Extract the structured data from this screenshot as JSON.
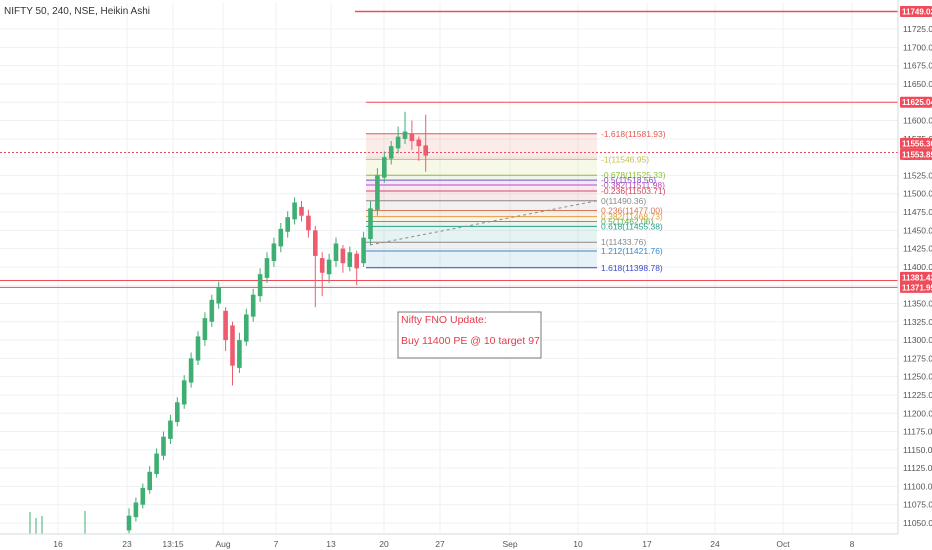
{
  "header": {
    "title": "NIFTY 50, 240, NSE, Heikin Ashi"
  },
  "colors": {
    "up": "#3fae72",
    "down": "#ef5b6e",
    "grid": "#eef1f4",
    "axis_text": "#555555",
    "badge": "#ef4b5a",
    "note_text": "#e53a4a"
  },
  "chart_data": {
    "type": "candlestick",
    "style": "Heikin Ashi",
    "title": "NIFTY 50, 240, NSE, Heikin Ashi",
    "ylim": [
      11035,
      11762
    ],
    "y_ticks": [
      11050,
      11075,
      11100,
      11125,
      11150,
      11175,
      11200,
      11225,
      11250,
      11275,
      11300,
      11325,
      11350,
      11375,
      11400,
      11425,
      11450,
      11475,
      11500,
      11525,
      11550,
      11575,
      11600,
      11625,
      11650,
      11675,
      11700,
      11725
    ],
    "x_ticks": [
      "16",
      "23",
      "13:15",
      "Aug",
      "7",
      "13",
      "20",
      "27",
      "Sep",
      "10",
      "17",
      "24",
      "Oct",
      "8"
    ],
    "grid": true,
    "candles": [
      {
        "o": 11040,
        "c": 11060,
        "h": 11070,
        "l": 11036
      },
      {
        "o": 11058,
        "c": 11078,
        "h": 11085,
        "l": 11052
      },
      {
        "o": 11075,
        "c": 11098,
        "h": 11104,
        "l": 11070
      },
      {
        "o": 11095,
        "c": 11120,
        "h": 11128,
        "l": 11090
      },
      {
        "o": 11117,
        "c": 11145,
        "h": 11152,
        "l": 11112
      },
      {
        "o": 11142,
        "c": 11168,
        "h": 11175,
        "l": 11136
      },
      {
        "o": 11165,
        "c": 11190,
        "h": 11198,
        "l": 11158
      },
      {
        "o": 11188,
        "c": 11215,
        "h": 11222,
        "l": 11182
      },
      {
        "o": 11212,
        "c": 11245,
        "h": 11252,
        "l": 11206
      },
      {
        "o": 11242,
        "c": 11275,
        "h": 11283,
        "l": 11235
      },
      {
        "o": 11272,
        "c": 11305,
        "h": 11312,
        "l": 11266
      },
      {
        "o": 11300,
        "c": 11330,
        "h": 11338,
        "l": 11292
      },
      {
        "o": 11325,
        "c": 11355,
        "h": 11362,
        "l": 11318
      },
      {
        "o": 11350,
        "c": 11372,
        "h": 11380,
        "l": 11343
      },
      {
        "o": 11340,
        "c": 11300,
        "h": 11345,
        "l": 11285
      },
      {
        "o": 11320,
        "c": 11265,
        "h": 11325,
        "l": 11238
      },
      {
        "o": 11262,
        "c": 11300,
        "h": 11310,
        "l": 11255
      },
      {
        "o": 11298,
        "c": 11335,
        "h": 11343,
        "l": 11292
      },
      {
        "o": 11332,
        "c": 11362,
        "h": 11370,
        "l": 11325
      },
      {
        "o": 11360,
        "c": 11390,
        "h": 11398,
        "l": 11352
      },
      {
        "o": 11385,
        "c": 11412,
        "h": 11420,
        "l": 11378
      },
      {
        "o": 11408,
        "c": 11432,
        "h": 11440,
        "l": 11400
      },
      {
        "o": 11428,
        "c": 11452,
        "h": 11460,
        "l": 11420
      },
      {
        "o": 11448,
        "c": 11468,
        "h": 11476,
        "l": 11440
      },
      {
        "o": 11465,
        "c": 11488,
        "h": 11495,
        "l": 11458
      },
      {
        "o": 11482,
        "c": 11470,
        "h": 11490,
        "l": 11462
      },
      {
        "o": 11470,
        "c": 11450,
        "h": 11478,
        "l": 11440
      },
      {
        "o": 11450,
        "c": 11415,
        "h": 11456,
        "l": 11345
      },
      {
        "o": 11412,
        "c": 11392,
        "h": 11420,
        "l": 11360
      },
      {
        "o": 11390,
        "c": 11410,
        "h": 11418,
        "l": 11378
      },
      {
        "o": 11408,
        "c": 11432,
        "h": 11440,
        "l": 11400
      },
      {
        "o": 11425,
        "c": 11405,
        "h": 11430,
        "l": 11392
      },
      {
        "o": 11400,
        "c": 11420,
        "h": 11428,
        "l": 11394
      },
      {
        "o": 11418,
        "c": 11398,
        "h": 11422,
        "l": 11375
      },
      {
        "o": 11405,
        "c": 11440,
        "h": 11448,
        "l": 11400
      },
      {
        "o": 11438,
        "c": 11480,
        "h": 11490,
        "l": 11430
      },
      {
        "o": 11478,
        "c": 11525,
        "h": 11535,
        "l": 11470
      },
      {
        "o": 11522,
        "c": 11550,
        "h": 11558,
        "l": 11515
      },
      {
        "o": 11548,
        "c": 11565,
        "h": 11572,
        "l": 11540
      },
      {
        "o": 11562,
        "c": 11578,
        "h": 11592,
        "l": 11555
      },
      {
        "o": 11575,
        "c": 11585,
        "h": 11612,
        "l": 11568
      },
      {
        "o": 11582,
        "c": 11572,
        "h": 11600,
        "l": 11560
      },
      {
        "o": 11574,
        "c": 11565,
        "h": 11578,
        "l": 11545
      },
      {
        "o": 11566,
        "c": 11552,
        "h": 11608,
        "l": 11530
      }
    ],
    "fib_levels": [
      {
        "label": "-1.618(11581.93)",
        "value": 11581.93,
        "color": "#e0594e"
      },
      {
        "label": "-1(11546.95)",
        "value": 11546.95,
        "color": "#c7c24a"
      },
      {
        "label": "-0.678(11525.33)",
        "value": 11525.33,
        "color": "#8fbf3a"
      },
      {
        "label": "-0.5(11518.56)",
        "value": 11518.56,
        "color": "#7a4fc9"
      },
      {
        "label": "-0.382(11511.98)",
        "value": 11511.98,
        "color": "#c24ab8"
      },
      {
        "label": "-0.236(11503.71)",
        "value": 11503.71,
        "color": "#d04a5a"
      },
      {
        "label": "0(11490.36)",
        "value": 11490.36,
        "color": "#888888"
      },
      {
        "label": "0.236(11477.00)",
        "value": 11477.0,
        "color": "#d07a5a"
      },
      {
        "label": "0.382(11468.73)",
        "value": 11468.73,
        "color": "#e0a040"
      },
      {
        "label": "0.5(11462.06)",
        "value": 11462.06,
        "color": "#58b050"
      },
      {
        "label": "0.618(11455.38)",
        "value": 11455.38,
        "color": "#28a090"
      },
      {
        "label": "1(11433.76)",
        "value": 11433.76,
        "color": "#888888"
      },
      {
        "label": "1.212(11421.76)",
        "value": 11421.76,
        "color": "#3a8ac8"
      },
      {
        "label": "1.618(11398.78)",
        "value": 11398.78,
        "color": "#3a4ac8"
      }
    ],
    "price_lines": [
      {
        "label": "11749.02",
        "value": 11749.02
      },
      {
        "label": "11625.04",
        "value": 11625.04
      },
      {
        "label": "11556.30",
        "value": 11556.3
      },
      {
        "label": "11553.85",
        "value": 11553.85
      },
      {
        "label": "11381.42",
        "value": 11381.42
      },
      {
        "label": "11371.95",
        "value": 11371.95
      }
    ],
    "annotations": [
      {
        "line1": "Nifty FNO Update:",
        "line2": "Buy 11400 PE @ 10 target 97"
      }
    ]
  }
}
